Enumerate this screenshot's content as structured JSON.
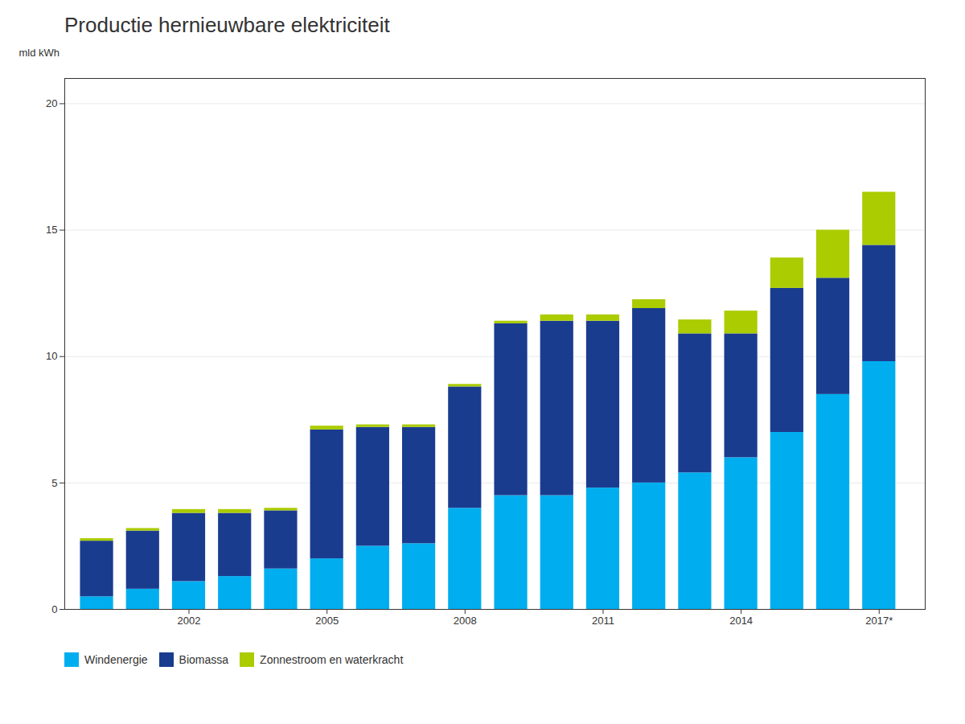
{
  "chart_data": {
    "type": "bar",
    "stacked": true,
    "title": "Productie hernieuwbare elektriciteit",
    "y_label": "mld kWh",
    "x": [
      2000,
      2001,
      2002,
      2003,
      2004,
      2005,
      2006,
      2007,
      2008,
      2009,
      2010,
      2011,
      2012,
      2013,
      2014,
      2015,
      2016,
      2017
    ],
    "series": [
      {
        "name": "Windenergie",
        "color": "#00AEEF",
        "values": [
          0.5,
          0.8,
          1.1,
          1.3,
          1.6,
          2.0,
          2.5,
          2.6,
          4.0,
          4.5,
          4.5,
          4.8,
          5.0,
          5.4,
          6.0,
          7.0,
          8.5,
          9.8
        ]
      },
      {
        "name": "Biomassa",
        "color": "#1A3C8F",
        "values": [
          2.2,
          2.3,
          2.7,
          2.5,
          2.3,
          5.1,
          4.7,
          4.6,
          4.8,
          6.8,
          6.9,
          6.6,
          6.9,
          5.5,
          4.9,
          5.7,
          4.6,
          4.6
        ]
      },
      {
        "name": "Zonnestroom en waterkracht",
        "color": "#AACC00",
        "values": [
          0.1,
          0.1,
          0.15,
          0.15,
          0.1,
          0.15,
          0.1,
          0.1,
          0.1,
          0.1,
          0.25,
          0.25,
          0.35,
          0.55,
          0.9,
          1.2,
          1.9,
          2.1
        ]
      }
    ],
    "xlim": [
      1999.3,
      2018.0
    ],
    "xticks": [
      2002,
      2005,
      2008,
      2011,
      2014,
      {
        "value": 2017,
        "label": "2017*"
      }
    ],
    "ylim": [
      0,
      21
    ],
    "yticks": [
      0,
      5,
      10,
      15,
      20
    ],
    "grid": true,
    "legend": "lower left"
  }
}
